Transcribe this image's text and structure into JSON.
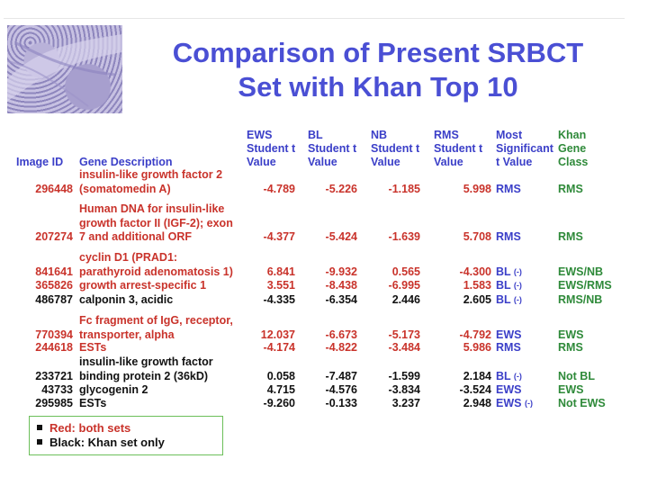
{
  "title_lines": [
    "Comparison of Present SRBCT",
    "Set with Khan Top 10"
  ],
  "headers": {
    "image_id": "Image ID",
    "gene_description": "Gene Description",
    "ews": [
      "EWS",
      "Student t",
      "Value"
    ],
    "bl": [
      "BL",
      "Student t",
      "Value"
    ],
    "nb": [
      "NB",
      "Student t",
      "Value"
    ],
    "rms": [
      "RMS",
      "Student t",
      "Value"
    ],
    "most": [
      "Most",
      "Significant",
      "t Value"
    ],
    "khan": [
      "Khan",
      "Gene",
      "Class"
    ]
  },
  "rows": [
    {
      "id": "296448",
      "desc": [
        "insulin-like growth factor 2",
        "(somatomedin A)"
      ],
      "ews": "-4.789",
      "bl": "-5.226",
      "nb": "-1.185",
      "rms": "5.998",
      "most": "RMS",
      "most_suffix": "",
      "khan": "RMS",
      "set": "both"
    },
    {
      "id": "207274",
      "desc": [
        "Human DNA for insulin-like",
        "growth factor II (IGF-2); exon",
        "7 and additional ORF"
      ],
      "ews": "-4.377",
      "bl": "-5.424",
      "nb": "-1.639",
      "rms": "5.708",
      "most": "RMS",
      "most_suffix": "",
      "khan": "RMS",
      "set": "both"
    },
    {
      "id": "841641",
      "desc": [
        "cyclin D1 (PRAD1:",
        "parathyroid adenomatosis 1)"
      ],
      "ews": "6.841",
      "bl": "-9.932",
      "nb": "0.565",
      "rms": "-4.300",
      "most": "BL",
      "most_suffix": "(-)",
      "khan": "EWS/NB",
      "set": "both"
    },
    {
      "id": "365826",
      "desc": [
        "growth arrest-specific 1"
      ],
      "ews": "3.551",
      "bl": "-8.438",
      "nb": "-6.995",
      "rms": "1.583",
      "most": "BL",
      "most_suffix": "(-)",
      "khan": "EWS/RMS",
      "set": "both"
    },
    {
      "id": "486787",
      "desc": [
        "calponin 3, acidic"
      ],
      "ews": "-4.335",
      "bl": "-6.354",
      "nb": "2.446",
      "rms": "2.605",
      "most": "BL",
      "most_suffix": "(-)",
      "khan": "RMS/NB",
      "set": "khan"
    },
    {
      "id": "770394",
      "desc": [
        "Fc fragment of IgG, receptor,",
        "transporter, alpha"
      ],
      "ews": "12.037",
      "bl": "-6.673",
      "nb": "-5.173",
      "rms": "-4.792",
      "most": "EWS",
      "most_suffix": "",
      "khan": "EWS",
      "set": "both"
    },
    {
      "id": "244618",
      "desc": [
        "ESTs"
      ],
      "ews": "-4.174",
      "bl": "-4.822",
      "nb": "-3.484",
      "rms": "5.986",
      "most": "RMS",
      "most_suffix": "",
      "khan": "RMS",
      "set": "both"
    },
    {
      "id": "233721",
      "desc": [
        "insulin-like growth factor",
        "binding protein 2 (36kD)"
      ],
      "ews": "0.058",
      "bl": "-7.487",
      "nb": "-1.599",
      "rms": "2.184",
      "most": "BL",
      "most_suffix": "(-)",
      "khan": "Not BL",
      "set": "khan"
    },
    {
      "id": "43733",
      "desc": [
        "glycogenin 2"
      ],
      "ews": "4.715",
      "bl": "-4.576",
      "nb": "-3.834",
      "rms": "-3.524",
      "most": "EWS",
      "most_suffix": "",
      "khan": "EWS",
      "set": "khan"
    },
    {
      "id": "295985",
      "desc": [
        "ESTs"
      ],
      "ews": "-9.260",
      "bl": "-0.133",
      "nb": "3.237",
      "rms": "2.948",
      "most": "EWS",
      "most_suffix": "(-)",
      "khan": "Not EWS",
      "set": "khan"
    }
  ],
  "legend": [
    "Red: both sets",
    "Black: Khan set only"
  ],
  "colors": {
    "title": "#4a4fd4",
    "header": "#3b3fc8",
    "khan_header": "#2f8a3a",
    "both_sets": "#c9332b",
    "khan_only": "#111111",
    "legend_border": "#6cbf5a"
  }
}
